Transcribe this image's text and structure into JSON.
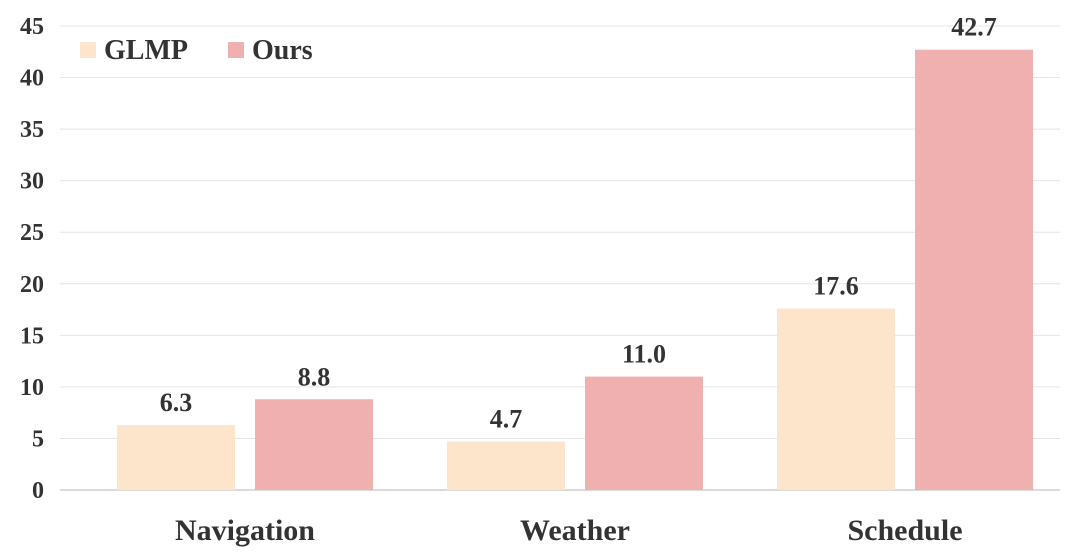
{
  "chart_data": {
    "type": "bar",
    "categories": [
      "Navigation",
      "Weather",
      "Schedule"
    ],
    "series": [
      {
        "name": "GLMP",
        "values": [
          6.3,
          4.7,
          17.6
        ],
        "color": "#fde5cc"
      },
      {
        "name": "Ours",
        "values": [
          8.8,
          11.0,
          42.7
        ],
        "color": "#f1b0b0"
      }
    ],
    "data_labels": [
      [
        "6.3",
        "4.7",
        "17.6"
      ],
      [
        "8.8",
        "11.0",
        "42.7"
      ]
    ],
    "yticks": [
      "0",
      "5",
      "10",
      "15",
      "20",
      "25",
      "30",
      "35",
      "40",
      "45"
    ],
    "ylim": [
      0,
      45
    ],
    "grid": true,
    "legend_position": "top-left"
  }
}
